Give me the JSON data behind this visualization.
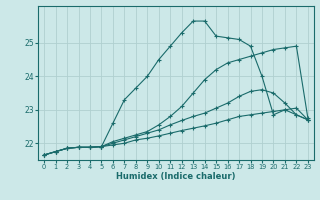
{
  "xlabel": "Humidex (Indice chaleur)",
  "bg_color": "#cce8e8",
  "grid_color": "#b0d0d0",
  "line_color": "#1a6b6b",
  "xlim": [
    -0.5,
    23.5
  ],
  "ylim": [
    21.5,
    26.1
  ],
  "yticks": [
    22,
    23,
    24,
    25
  ],
  "xticks": [
    0,
    1,
    2,
    3,
    4,
    5,
    6,
    7,
    8,
    9,
    10,
    11,
    12,
    13,
    14,
    15,
    16,
    17,
    18,
    19,
    20,
    21,
    22,
    23
  ],
  "series": [
    {
      "x": [
        0,
        1,
        2,
        3,
        4,
        5,
        6,
        7,
        8,
        9,
        10,
        11,
        12,
        13,
        14,
        15,
        16,
        17,
        18,
        19,
        20,
        21,
        22,
        23
      ],
      "y": [
        21.65,
        21.75,
        21.85,
        21.88,
        21.88,
        21.9,
        22.05,
        22.15,
        22.25,
        22.35,
        22.55,
        22.8,
        23.1,
        23.5,
        23.9,
        24.2,
        24.4,
        24.5,
        24.6,
        24.7,
        24.8,
        24.85,
        24.9,
        22.75
      ]
    },
    {
      "x": [
        0,
        1,
        2,
        3,
        4,
        5,
        6,
        7,
        8,
        9,
        10,
        11,
        12,
        13,
        14,
        15,
        16,
        17,
        18,
        19,
        20,
        21,
        22,
        23
      ],
      "y": [
        21.65,
        21.75,
        21.85,
        21.88,
        21.88,
        21.9,
        22.6,
        23.3,
        23.65,
        24.0,
        24.5,
        24.9,
        25.3,
        25.65,
        25.65,
        25.2,
        25.15,
        25.1,
        24.9,
        24.0,
        22.85,
        23.0,
        22.85,
        22.7
      ]
    },
    {
      "x": [
        0,
        1,
        2,
        3,
        4,
        5,
        6,
        7,
        8,
        9,
        10,
        11,
        12,
        13,
        14,
        15,
        16,
        17,
        18,
        19,
        20,
        21,
        22,
        23
      ],
      "y": [
        21.65,
        21.75,
        21.85,
        21.88,
        21.88,
        21.9,
        21.95,
        22.0,
        22.1,
        22.15,
        22.22,
        22.3,
        22.38,
        22.45,
        22.52,
        22.6,
        22.7,
        22.8,
        22.85,
        22.9,
        22.95,
        23.0,
        23.05,
        22.7
      ]
    },
    {
      "x": [
        0,
        1,
        2,
        3,
        4,
        5,
        6,
        7,
        8,
        9,
        10,
        11,
        12,
        13,
        14,
        15,
        16,
        17,
        18,
        19,
        20,
        21,
        22,
        23
      ],
      "y": [
        21.65,
        21.75,
        21.85,
        21.88,
        21.88,
        21.9,
        22.0,
        22.1,
        22.2,
        22.3,
        22.4,
        22.55,
        22.68,
        22.8,
        22.9,
        23.05,
        23.2,
        23.4,
        23.55,
        23.6,
        23.5,
        23.2,
        22.85,
        22.7
      ]
    }
  ]
}
